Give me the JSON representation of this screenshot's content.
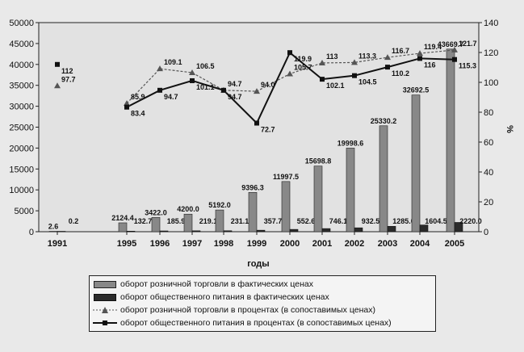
{
  "chart_data": {
    "type": "bar",
    "x_title": "годы",
    "y2_title": "%",
    "categories": [
      "1991",
      "1995",
      "1996",
      "1997",
      "1998",
      "1999",
      "2000",
      "2001",
      "2002",
      "2003",
      "2004",
      "2005"
    ],
    "yticks_left": [
      "0",
      "5000",
      "10000",
      "15000",
      "20000",
      "25000",
      "30000",
      "35000",
      "40000",
      "45000",
      "50000"
    ],
    "yticks_right": [
      "0",
      "20",
      "40",
      "60",
      "80",
      "100",
      "120",
      "140"
    ],
    "ylim": [
      0,
      50000
    ],
    "y2lim": [
      0,
      140
    ],
    "grid": false,
    "legend_position": "bottom",
    "series": [
      {
        "name": "оборот розничной торговли в фактических ценах",
        "kind": "bar",
        "axis": "left",
        "color": "#888888",
        "values": [
          2.6,
          2124.4,
          3422.0,
          4200.0,
          5192.0,
          9396.3,
          11997.5,
          15698.8,
          19998.6,
          25330.2,
          32692.5,
          43669.7
        ],
        "labels": [
          "2.6",
          "2124.4",
          "3422.0",
          "4200.0",
          "5192.0",
          "9396.3",
          "11997.5",
          "15698.8",
          "19998.6",
          "25330.2",
          "32692.5",
          "43669.7"
        ]
      },
      {
        "name": "оборот общественного питания в фактических ценах",
        "kind": "bar",
        "axis": "left",
        "color": "#2b2b2b",
        "values": [
          0.2,
          132.7,
          185.9,
          219.1,
          231.1,
          357.7,
          552.6,
          746.1,
          932.5,
          1285.0,
          1604.5,
          2220.0
        ],
        "labels": [
          "0.2",
          "132.7",
          "185.9",
          "219.1",
          "231.1",
          "357.7",
          "552.6",
          "746.1",
          "932.5",
          "1285.0",
          "1604.5",
          "2220.0"
        ]
      },
      {
        "name": "оборот розничной торговли в процентах (в сопоставимых ценах)",
        "kind": "line",
        "axis": "right",
        "marker": "triangle",
        "color": "#555555",
        "values": [
          97.7,
          85.9,
          109.1,
          106.5,
          94.7,
          94.0,
          105.7,
          113.0,
          113.3,
          116.7,
          119.4,
          121.7
        ],
        "labels": [
          "97.7",
          "85.9",
          "109.1",
          "106.5",
          "94.7",
          "94.0",
          "105.7",
          "113",
          "113.3",
          "116.7",
          "119.4",
          "121.7"
        ]
      },
      {
        "name": "оборот общественного питания в процентах (в сопоставимых ценах)",
        "kind": "line",
        "axis": "right",
        "marker": "square",
        "color": "#111111",
        "values": [
          112,
          83.4,
          94.7,
          101.1,
          94.7,
          72.7,
          119.9,
          102.1,
          104.5,
          110.2,
          116.0,
          115.3
        ],
        "labels": [
          "112",
          "83.4",
          "94.7",
          "101.1",
          "94.7",
          "72.7",
          "119.9",
          "102.1",
          "104.5",
          "110.2",
          "116",
          "115.3"
        ]
      }
    ]
  }
}
